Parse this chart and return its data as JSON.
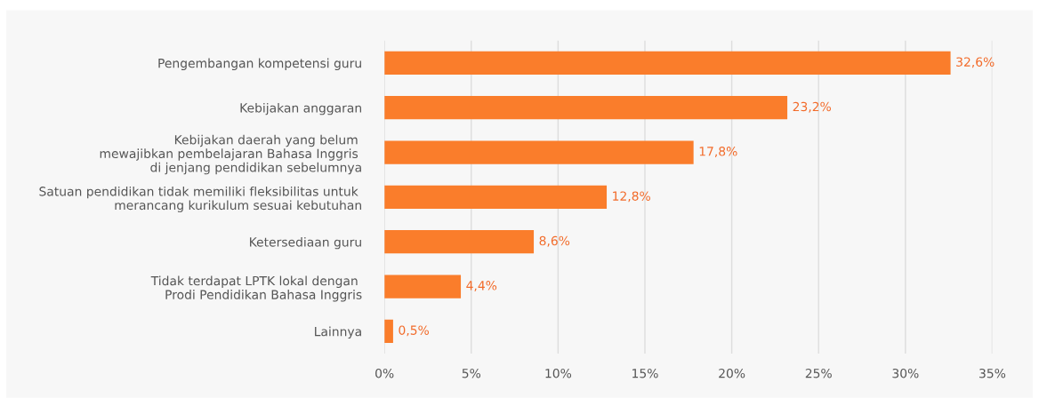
{
  "chart_data": {
    "type": "bar",
    "orientation": "horizontal",
    "categories": [
      "Pengembangan kompetensi guru",
      "Kebijakan anggaran",
      "Kebijakan daerah yang belum \nmewajibkan pembelajaran Bahasa Inggris \ndi jenjang pendidikan sebelumnya",
      "Satuan pendidikan tidak memiliki fleksibilitas untuk \nmerancang kurikulum sesuai kebutuhan",
      "Ketersediaan guru",
      "Tidak terdapat LPTK lokal dengan \nProdi Pendidikan Bahasa Inggris",
      "Lainnya"
    ],
    "values": [
      32.6,
      23.2,
      17.8,
      12.8,
      8.6,
      4.4,
      0.5
    ],
    "value_labels": [
      "32,6%",
      "23,2%",
      "17,8%",
      "12,8%",
      "8,6%",
      "4,4%",
      "0,5%"
    ],
    "color": "#fa7d2b",
    "xlim": [
      0,
      35
    ],
    "xticks": [
      {
        "value": 0,
        "label": "0%"
      },
      {
        "value": 5,
        "label": "5%"
      },
      {
        "value": 10,
        "label": "10%"
      },
      {
        "value": 15,
        "label": "15%"
      },
      {
        "value": 20,
        "label": "20%"
      },
      {
        "value": 25,
        "label": "25%"
      },
      {
        "value": 30,
        "label": "30%"
      },
      {
        "value": 35,
        "label": "35%"
      }
    ],
    "grid": "x"
  }
}
